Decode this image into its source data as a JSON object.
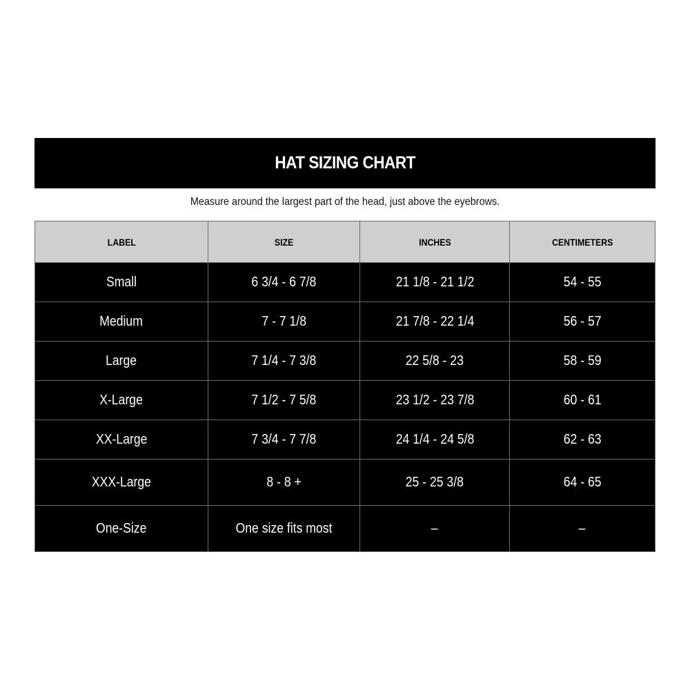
{
  "title": "HAT SIZING CHART",
  "subtitle": "Measure around the largest part of the head, just above the eyebrows.",
  "columns": [
    "LABEL",
    "SIZE",
    "INCHES",
    "CENTIMETERS"
  ],
  "rows": [
    [
      "Small",
      "6 3/4 - 6 7/8",
      "21 1/8 - 21 1/2",
      "54 - 55"
    ],
    [
      "Medium",
      "7 - 7 1/8",
      "21 7/8 - 22 1/4",
      "56 - 57"
    ],
    [
      "Large",
      "7 1/4 - 7 3/8",
      "22 5/8 - 23",
      "58 - 59"
    ],
    [
      "X-Large",
      "7 1/2 - 7 5/8",
      "23 1/2 - 23 7/8",
      "60 - 61"
    ],
    [
      "XX-Large",
      "7 3/4 - 7 7/8",
      "24 1/4 - 24 5/8",
      "62 - 63"
    ],
    [
      "XXX-Large",
      "8 - 8 +",
      "25 - 25 3/8",
      "64 - 65"
    ],
    [
      "One-Size",
      "One size fits most",
      "–",
      "–"
    ]
  ],
  "colors": {
    "header_bg": "#cfcfcf",
    "row_bg": "#000000",
    "border": "#6a6a6a"
  }
}
